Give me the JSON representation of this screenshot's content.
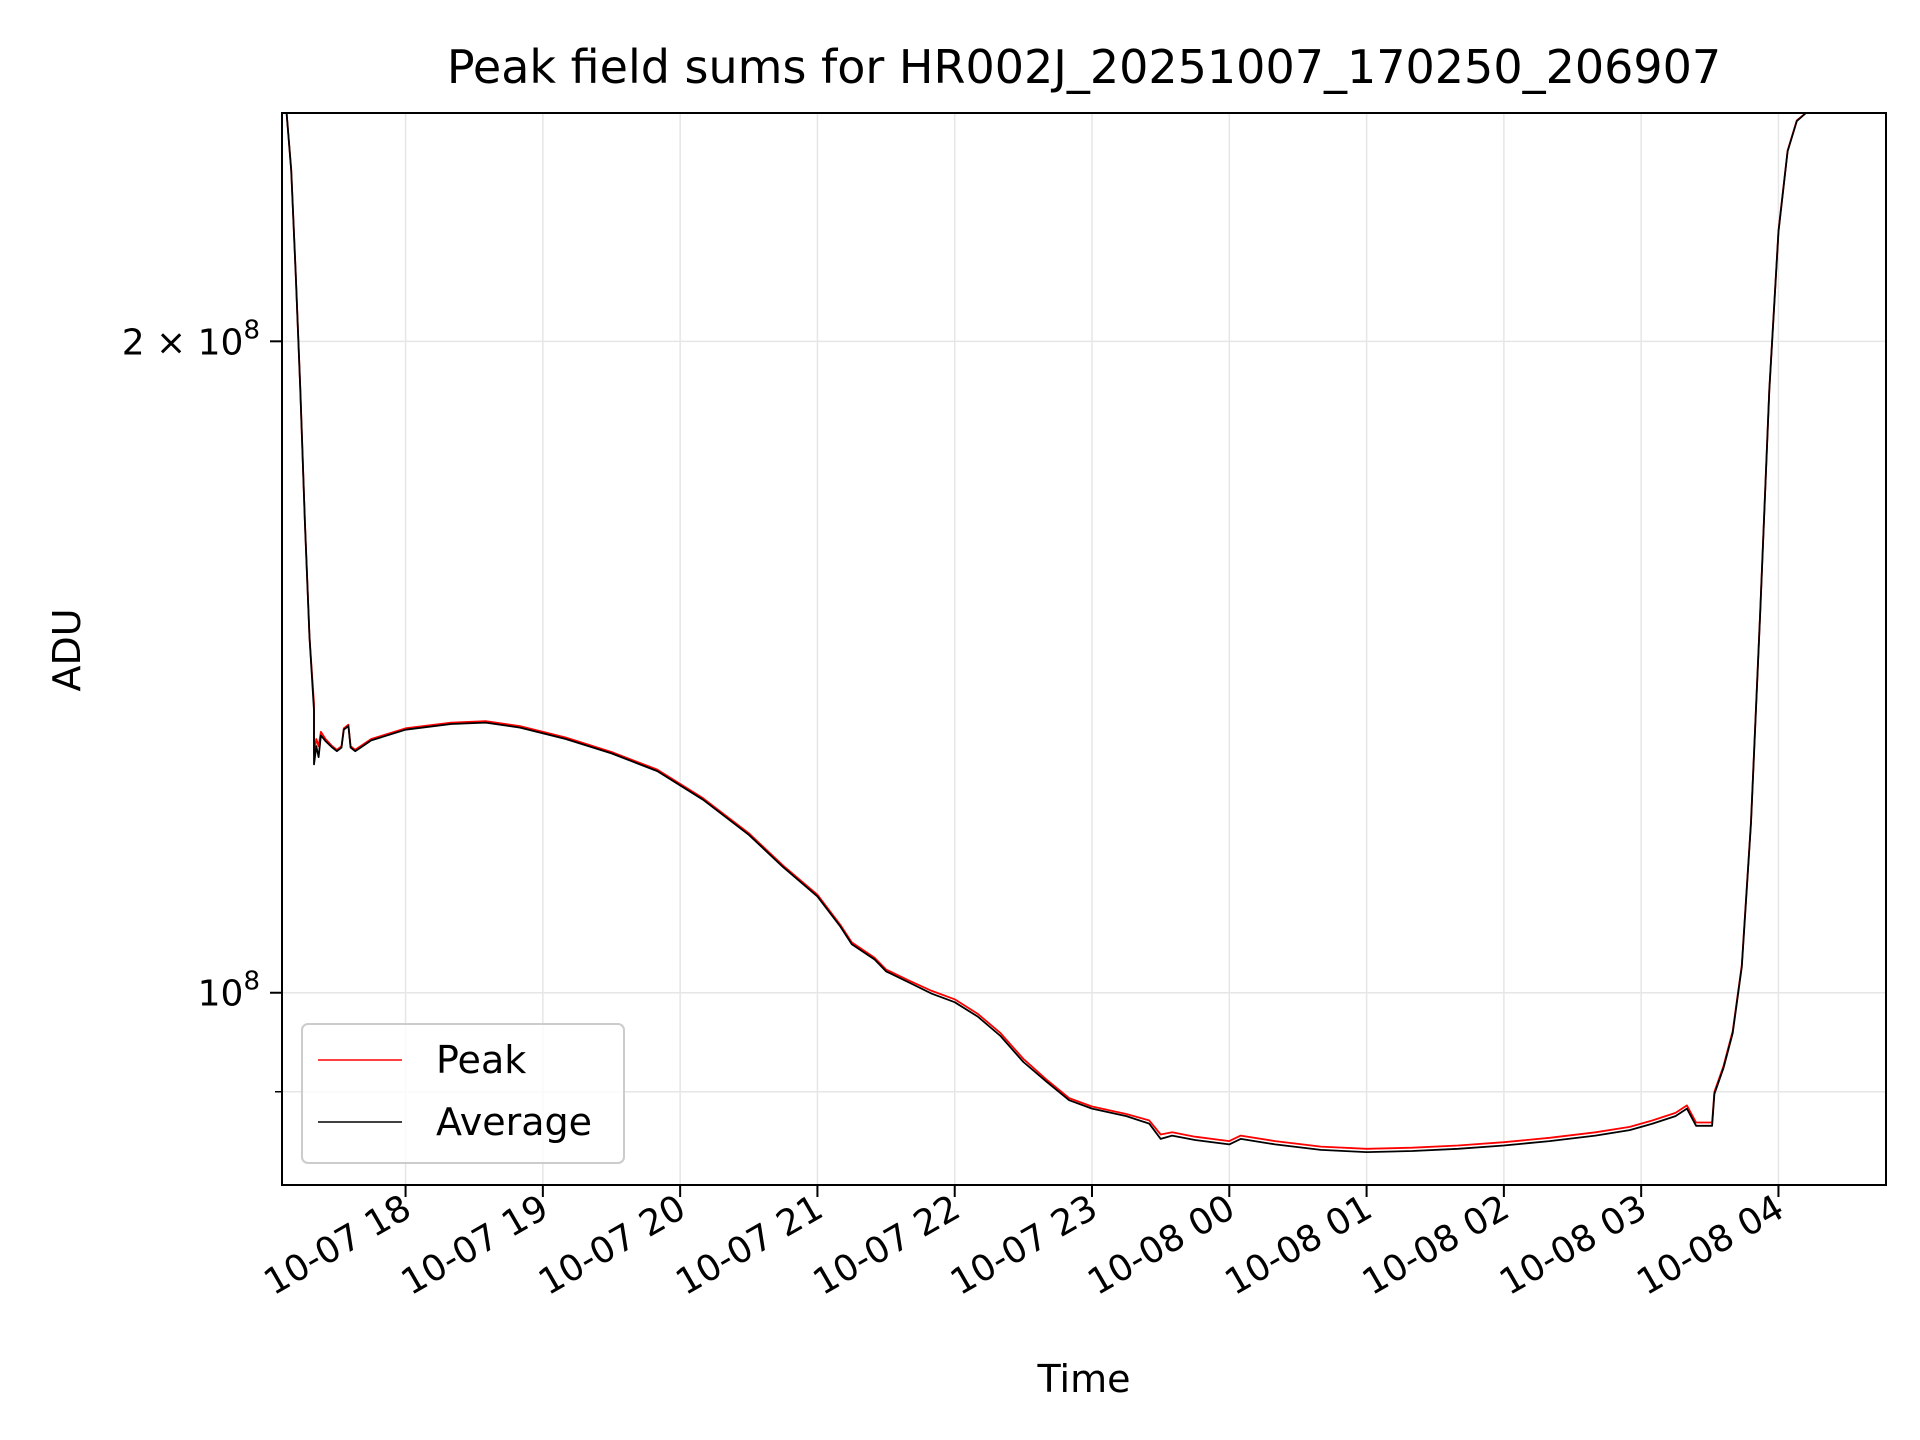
{
  "chart_data": {
    "type": "line",
    "title": "Peak field sums for HR002J_20251007_170250_206907",
    "xlabel": "Time",
    "ylabel": "ADU",
    "y_scale": "log",
    "xlim": [
      "2025-10-07 17:06",
      "2025-10-08 04:47"
    ],
    "ylim": [
      81500000,
      255000000
    ],
    "grid": true,
    "legend_position": "lower-left",
    "x_ticks": [
      {
        "t": "2025-10-07 18:00",
        "label": "10-07 18"
      },
      {
        "t": "2025-10-07 19:00",
        "label": "10-07 19"
      },
      {
        "t": "2025-10-07 20:00",
        "label": "10-07 20"
      },
      {
        "t": "2025-10-07 21:00",
        "label": "10-07 21"
      },
      {
        "t": "2025-10-07 22:00",
        "label": "10-07 22"
      },
      {
        "t": "2025-10-07 23:00",
        "label": "10-07 23"
      },
      {
        "t": "2025-10-08 00:00",
        "label": "10-08 00"
      },
      {
        "t": "2025-10-08 01:00",
        "label": "10-08 01"
      },
      {
        "t": "2025-10-08 02:00",
        "label": "10-08 02"
      },
      {
        "t": "2025-10-08 03:00",
        "label": "10-08 03"
      },
      {
        "t": "2025-10-08 04:00",
        "label": "10-08 04"
      }
    ],
    "y_ticks": [
      {
        "value": 200000000,
        "base": "2 × 10",
        "exp": "8"
      },
      {
        "value": 100000000,
        "base": "10",
        "exp": "8"
      }
    ],
    "y_minor_ticks": [
      90000000
    ],
    "series": [
      {
        "name": "Peak",
        "color": "#ff0000",
        "points": [
          [
            "2025-10-07 17:06",
            255000000
          ],
          [
            "2025-10-07 17:08",
            255000000
          ],
          [
            "2025-10-07 17:10",
            240000000
          ],
          [
            "2025-10-07 17:12",
            215000000
          ],
          [
            "2025-10-07 17:14",
            190000000
          ],
          [
            "2025-10-07 17:16",
            165000000
          ],
          [
            "2025-10-07 17:18",
            146000000
          ],
          [
            "2025-10-07 17:20",
            136000000
          ],
          [
            "2025-10-07 17:20",
            129000000
          ],
          [
            "2025-10-07 17:21",
            131000000
          ],
          [
            "2025-10-07 17:22",
            130000000
          ],
          [
            "2025-10-07 17:23",
            132000000
          ],
          [
            "2025-10-07 17:25",
            131000000
          ],
          [
            "2025-10-07 17:28",
            130000000
          ],
          [
            "2025-10-07 17:30",
            129500000
          ],
          [
            "2025-10-07 17:32",
            130000000
          ],
          [
            "2025-10-07 17:33",
            132500000
          ],
          [
            "2025-10-07 17:35",
            133000000
          ],
          [
            "2025-10-07 17:36",
            130000000
          ],
          [
            "2025-10-07 17:38",
            129500000
          ],
          [
            "2025-10-07 17:45",
            131000000
          ],
          [
            "2025-10-07 18:00",
            132500000
          ],
          [
            "2025-10-07 18:20",
            133300000
          ],
          [
            "2025-10-07 18:35",
            133500000
          ],
          [
            "2025-10-07 18:50",
            132800000
          ],
          [
            "2025-10-07 19:10",
            131200000
          ],
          [
            "2025-10-07 19:30",
            129200000
          ],
          [
            "2025-10-07 19:50",
            126800000
          ],
          [
            "2025-10-07 20:10",
            123000000
          ],
          [
            "2025-10-07 20:30",
            118500000
          ],
          [
            "2025-10-07 20:45",
            114500000
          ],
          [
            "2025-10-07 21:00",
            111000000
          ],
          [
            "2025-10-07 21:10",
            107500000
          ],
          [
            "2025-10-07 21:15",
            105500000
          ],
          [
            "2025-10-07 21:25",
            103800000
          ],
          [
            "2025-10-07 21:30",
            102500000
          ],
          [
            "2025-10-07 21:40",
            101300000
          ],
          [
            "2025-10-07 21:50",
            100200000
          ],
          [
            "2025-10-07 22:00",
            99300000
          ],
          [
            "2025-10-07 22:10",
            97800000
          ],
          [
            "2025-10-07 22:20",
            95800000
          ],
          [
            "2025-10-07 22:30",
            93200000
          ],
          [
            "2025-10-07 22:40",
            91200000
          ],
          [
            "2025-10-07 22:50",
            89400000
          ],
          [
            "2025-10-07 23:00",
            88600000
          ],
          [
            "2025-10-07 23:15",
            87900000
          ],
          [
            "2025-10-07 23:25",
            87300000
          ],
          [
            "2025-10-07 23:30",
            86000000
          ],
          [
            "2025-10-07 23:35",
            86200000
          ],
          [
            "2025-10-07 23:45",
            85800000
          ],
          [
            "2025-10-08 00:00",
            85400000
          ],
          [
            "2025-10-08 00:05",
            85900000
          ],
          [
            "2025-10-08 00:20",
            85400000
          ],
          [
            "2025-10-08 00:40",
            84900000
          ],
          [
            "2025-10-08 01:00",
            84700000
          ],
          [
            "2025-10-08 01:20",
            84800000
          ],
          [
            "2025-10-08 01:40",
            85000000
          ],
          [
            "2025-10-08 02:00",
            85300000
          ],
          [
            "2025-10-08 02:20",
            85700000
          ],
          [
            "2025-10-08 02:40",
            86200000
          ],
          [
            "2025-10-08 02:55",
            86700000
          ],
          [
            "2025-10-08 03:05",
            87300000
          ],
          [
            "2025-10-08 03:15",
            88000000
          ],
          [
            "2025-10-08 03:20",
            88700000
          ],
          [
            "2025-10-08 03:24",
            87100000
          ],
          [
            "2025-10-08 03:31",
            87100000
          ],
          [
            "2025-10-08 03:32",
            90000000
          ],
          [
            "2025-10-08 03:36",
            92500000
          ],
          [
            "2025-10-08 03:40",
            96000000
          ],
          [
            "2025-10-08 03:44",
            103000000
          ],
          [
            "2025-10-08 03:48",
            120000000
          ],
          [
            "2025-10-08 03:52",
            150000000
          ],
          [
            "2025-10-08 03:56",
            190000000
          ],
          [
            "2025-10-08 04:00",
            225000000
          ],
          [
            "2025-10-08 04:04",
            245000000
          ],
          [
            "2025-10-08 04:08",
            253000000
          ],
          [
            "2025-10-08 04:12",
            255000000
          ],
          [
            "2025-10-08 04:47",
            255000000
          ]
        ]
      },
      {
        "name": "Average",
        "color": "#000000",
        "points": [
          [
            "2025-10-07 17:06",
            255000000
          ],
          [
            "2025-10-07 17:08",
            255000000
          ],
          [
            "2025-10-07 17:10",
            240000000
          ],
          [
            "2025-10-07 17:12",
            215000000
          ],
          [
            "2025-10-07 17:14",
            190000000
          ],
          [
            "2025-10-07 17:16",
            165000000
          ],
          [
            "2025-10-07 17:18",
            146000000
          ],
          [
            "2025-10-07 17:20",
            135000000
          ],
          [
            "2025-10-07 17:20",
            127500000
          ],
          [
            "2025-10-07 17:21",
            130000000
          ],
          [
            "2025-10-07 17:22",
            128500000
          ],
          [
            "2025-10-07 17:23",
            131500000
          ],
          [
            "2025-10-07 17:25",
            130700000
          ],
          [
            "2025-10-07 17:28",
            129800000
          ],
          [
            "2025-10-07 17:30",
            129300000
          ],
          [
            "2025-10-07 17:32",
            129800000
          ],
          [
            "2025-10-07 17:33",
            132300000
          ],
          [
            "2025-10-07 17:35",
            132800000
          ],
          [
            "2025-10-07 17:36",
            129800000
          ],
          [
            "2025-10-07 17:38",
            129300000
          ],
          [
            "2025-10-07 17:45",
            130800000
          ],
          [
            "2025-10-07 18:00",
            132300000
          ],
          [
            "2025-10-07 18:20",
            133100000
          ],
          [
            "2025-10-07 18:35",
            133300000
          ],
          [
            "2025-10-07 18:50",
            132600000
          ],
          [
            "2025-10-07 19:10",
            131000000
          ],
          [
            "2025-10-07 19:30",
            129000000
          ],
          [
            "2025-10-07 19:50",
            126600000
          ],
          [
            "2025-10-07 20:10",
            122800000
          ],
          [
            "2025-10-07 20:30",
            118300000
          ],
          [
            "2025-10-07 20:45",
            114300000
          ],
          [
            "2025-10-07 21:00",
            110800000
          ],
          [
            "2025-10-07 21:10",
            107300000
          ],
          [
            "2025-10-07 21:15",
            105300000
          ],
          [
            "2025-10-07 21:25",
            103600000
          ],
          [
            "2025-10-07 21:30",
            102300000
          ],
          [
            "2025-10-07 21:40",
            101100000
          ],
          [
            "2025-10-07 21:50",
            99900000
          ],
          [
            "2025-10-07 22:00",
            99000000
          ],
          [
            "2025-10-07 22:10",
            97500000
          ],
          [
            "2025-10-07 22:20",
            95500000
          ],
          [
            "2025-10-07 22:30",
            92900000
          ],
          [
            "2025-10-07 22:40",
            91000000
          ],
          [
            "2025-10-07 22:50",
            89200000
          ],
          [
            "2025-10-07 23:00",
            88400000
          ],
          [
            "2025-10-07 23:15",
            87700000
          ],
          [
            "2025-10-07 23:25",
            87000000
          ],
          [
            "2025-10-07 23:30",
            85600000
          ],
          [
            "2025-10-07 23:35",
            85900000
          ],
          [
            "2025-10-07 23:45",
            85500000
          ],
          [
            "2025-10-08 00:00",
            85100000
          ],
          [
            "2025-10-08 00:05",
            85600000
          ],
          [
            "2025-10-08 00:20",
            85100000
          ],
          [
            "2025-10-08 00:40",
            84600000
          ],
          [
            "2025-10-08 01:00",
            84400000
          ],
          [
            "2025-10-08 01:20",
            84500000
          ],
          [
            "2025-10-08 01:40",
            84700000
          ],
          [
            "2025-10-08 02:00",
            85000000
          ],
          [
            "2025-10-08 02:20",
            85400000
          ],
          [
            "2025-10-08 02:40",
            85900000
          ],
          [
            "2025-10-08 02:55",
            86400000
          ],
          [
            "2025-10-08 03:05",
            87000000
          ],
          [
            "2025-10-08 03:15",
            87700000
          ],
          [
            "2025-10-08 03:20",
            88400000
          ],
          [
            "2025-10-08 03:24",
            86800000
          ],
          [
            "2025-10-08 03:31",
            86800000
          ],
          [
            "2025-10-08 03:32",
            89800000
          ],
          [
            "2025-10-08 03:36",
            92300000
          ],
          [
            "2025-10-08 03:40",
            95800000
          ],
          [
            "2025-10-08 03:44",
            102800000
          ],
          [
            "2025-10-08 03:48",
            119800000
          ],
          [
            "2025-10-08 03:52",
            149800000
          ],
          [
            "2025-10-08 03:56",
            189800000
          ],
          [
            "2025-10-08 04:00",
            224800000
          ],
          [
            "2025-10-08 04:04",
            244800000
          ],
          [
            "2025-10-08 04:08",
            252800000
          ],
          [
            "2025-10-08 04:12",
            255000000
          ],
          [
            "2025-10-08 04:47",
            255000000
          ]
        ]
      }
    ]
  }
}
